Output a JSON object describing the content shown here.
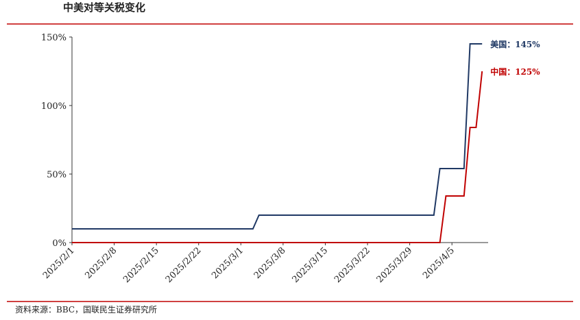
{
  "chart_data": {
    "type": "line",
    "title": "中美对等关税变化",
    "source": "资料来源：BBC，国联民生证券研究所",
    "xlim": [
      "2025/2/1",
      "2025/4/11"
    ],
    "xticks": [
      "2025/2/1",
      "2025/2/8",
      "2025/2/15",
      "2025/2/22",
      "2025/3/1",
      "2025/3/8",
      "2025/3/15",
      "2025/3/22",
      "2025/3/29",
      "2025/4/5"
    ],
    "ylim": [
      0,
      150
    ],
    "yticks": [
      {
        "value": 0,
        "label": "0%"
      },
      {
        "value": 50,
        "label": "50%"
      },
      {
        "value": 100,
        "label": "100%"
      },
      {
        "value": 150,
        "label": "150%"
      }
    ],
    "series": [
      {
        "name": "美国：145%",
        "color": "#1f3864",
        "x": [
          "2025/2/1",
          "2025/3/3",
          "2025/3/4",
          "2025/4/2",
          "2025/4/3",
          "2025/4/7",
          "2025/4/8",
          "2025/4/10"
        ],
        "values": [
          10,
          10,
          20,
          20,
          54,
          54,
          145,
          145
        ]
      },
      {
        "name": "中国：125%",
        "color": "#c00000",
        "x": [
          "2025/2/1",
          "2025/4/3",
          "2025/4/4",
          "2025/4/7",
          "2025/4/8",
          "2025/4/9",
          "2025/4/10"
        ],
        "values": [
          0,
          0,
          34,
          34,
          84,
          84,
          125
        ]
      }
    ]
  }
}
